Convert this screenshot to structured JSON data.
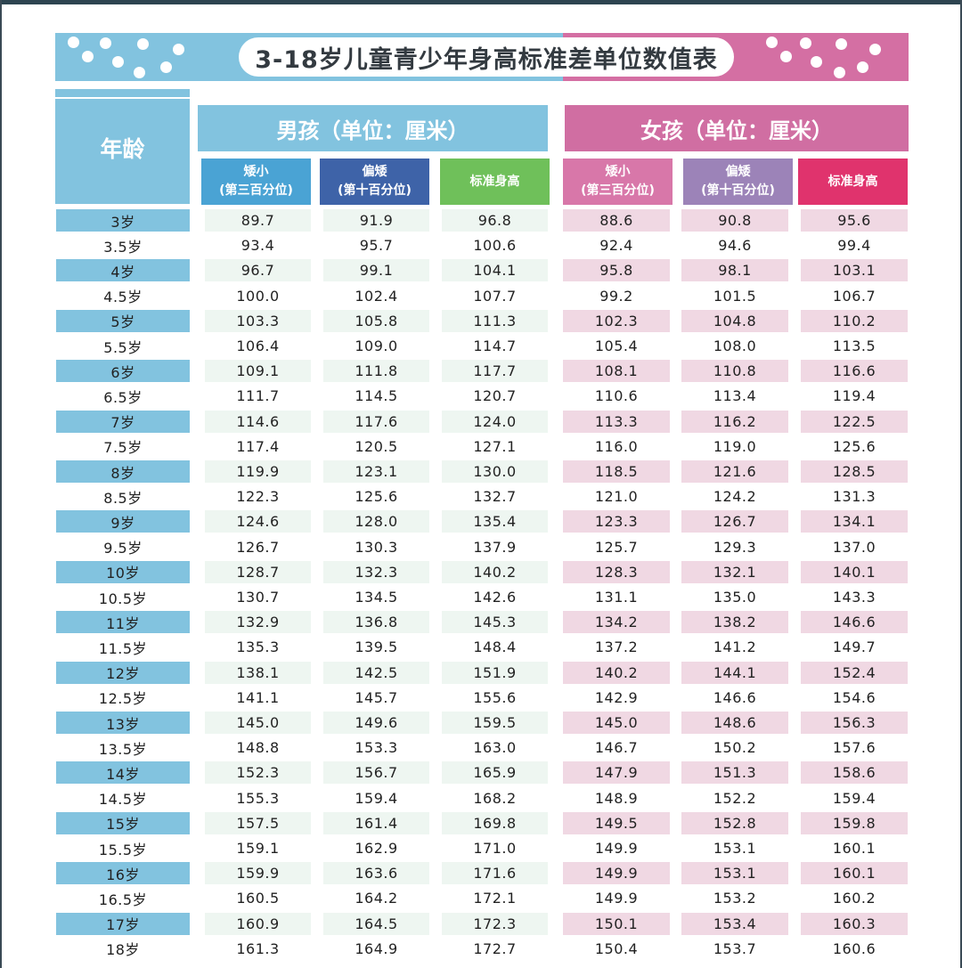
{
  "title": "3-18岁儿童青少年身高标准差单位数值表",
  "headers": {
    "age": "年龄",
    "boys": "男孩（单位：厘米）",
    "girls": "女孩（单位：厘米）",
    "boys_cols": [
      {
        "line1": "矮小",
        "line2": "(第三百分位)",
        "color": "#4aa3d4"
      },
      {
        "line1": "偏矮",
        "line2": "(第十百分位)",
        "color": "#3e63a8"
      },
      {
        "line1": "标准身高",
        "line2": "",
        "color": "#6fc05a"
      }
    ],
    "girls_cols": [
      {
        "line1": "矮小",
        "line2": "(第三百分位)",
        "color": "#d877a9"
      },
      {
        "line1": "偏矮",
        "line2": "(第十百分位)",
        "color": "#9c83b8"
      },
      {
        "line1": "标准身高",
        "line2": "",
        "color": "#e0336d"
      }
    ]
  },
  "colors": {
    "banner_blue": "#82c3df",
    "banner_pink": "#d46fa3",
    "age_stripe": "#82c3df",
    "boy_stripe": "#eef6f1",
    "girl_stripe": "#f0d8e3"
  },
  "rows": [
    {
      "age": "3岁",
      "b": [
        "89.7",
        "91.9",
        "96.8"
      ],
      "g": [
        "88.6",
        "90.8",
        "95.6"
      ]
    },
    {
      "age": "3.5岁",
      "b": [
        "93.4",
        "95.7",
        "100.6"
      ],
      "g": [
        "92.4",
        "94.6",
        "99.4"
      ]
    },
    {
      "age": "4岁",
      "b": [
        "96.7",
        "99.1",
        "104.1"
      ],
      "g": [
        "95.8",
        "98.1",
        "103.1"
      ]
    },
    {
      "age": "4.5岁",
      "b": [
        "100.0",
        "102.4",
        "107.7"
      ],
      "g": [
        "99.2",
        "101.5",
        "106.7"
      ]
    },
    {
      "age": "5岁",
      "b": [
        "103.3",
        "105.8",
        "111.3"
      ],
      "g": [
        "102.3",
        "104.8",
        "110.2"
      ]
    },
    {
      "age": "5.5岁",
      "b": [
        "106.4",
        "109.0",
        "114.7"
      ],
      "g": [
        "105.4",
        "108.0",
        "113.5"
      ]
    },
    {
      "age": "6岁",
      "b": [
        "109.1",
        "111.8",
        "117.7"
      ],
      "g": [
        "108.1",
        "110.8",
        "116.6"
      ]
    },
    {
      "age": "6.5岁",
      "b": [
        "111.7",
        "114.5",
        "120.7"
      ],
      "g": [
        "110.6",
        "113.4",
        "119.4"
      ]
    },
    {
      "age": "7岁",
      "b": [
        "114.6",
        "117.6",
        "124.0"
      ],
      "g": [
        "113.3",
        "116.2",
        "122.5"
      ]
    },
    {
      "age": "7.5岁",
      "b": [
        "117.4",
        "120.5",
        "127.1"
      ],
      "g": [
        "116.0",
        "119.0",
        "125.6"
      ]
    },
    {
      "age": "8岁",
      "b": [
        "119.9",
        "123.1",
        "130.0"
      ],
      "g": [
        "118.5",
        "121.6",
        "128.5"
      ]
    },
    {
      "age": "8.5岁",
      "b": [
        "122.3",
        "125.6",
        "132.7"
      ],
      "g": [
        "121.0",
        "124.2",
        "131.3"
      ]
    },
    {
      "age": "9岁",
      "b": [
        "124.6",
        "128.0",
        "135.4"
      ],
      "g": [
        "123.3",
        "126.7",
        "134.1"
      ]
    },
    {
      "age": "9.5岁",
      "b": [
        "126.7",
        "130.3",
        "137.9"
      ],
      "g": [
        "125.7",
        "129.3",
        "137.0"
      ]
    },
    {
      "age": "10岁",
      "b": [
        "128.7",
        "132.3",
        "140.2"
      ],
      "g": [
        "128.3",
        "132.1",
        "140.1"
      ]
    },
    {
      "age": "10.5岁",
      "b": [
        "130.7",
        "134.5",
        "142.6"
      ],
      "g": [
        "131.1",
        "135.0",
        "143.3"
      ]
    },
    {
      "age": "11岁",
      "b": [
        "132.9",
        "136.8",
        "145.3"
      ],
      "g": [
        "134.2",
        "138.2",
        "146.6"
      ]
    },
    {
      "age": "11.5岁",
      "b": [
        "135.3",
        "139.5",
        "148.4"
      ],
      "g": [
        "137.2",
        "141.2",
        "149.7"
      ]
    },
    {
      "age": "12岁",
      "b": [
        "138.1",
        "142.5",
        "151.9"
      ],
      "g": [
        "140.2",
        "144.1",
        "152.4"
      ]
    },
    {
      "age": "12.5岁",
      "b": [
        "141.1",
        "145.7",
        "155.6"
      ],
      "g": [
        "142.9",
        "146.6",
        "154.6"
      ]
    },
    {
      "age": "13岁",
      "b": [
        "145.0",
        "149.6",
        "159.5"
      ],
      "g": [
        "145.0",
        "148.6",
        "156.3"
      ]
    },
    {
      "age": "13.5岁",
      "b": [
        "148.8",
        "153.3",
        "163.0"
      ],
      "g": [
        "146.7",
        "150.2",
        "157.6"
      ]
    },
    {
      "age": "14岁",
      "b": [
        "152.3",
        "156.7",
        "165.9"
      ],
      "g": [
        "147.9",
        "151.3",
        "158.6"
      ]
    },
    {
      "age": "14.5岁",
      "b": [
        "155.3",
        "159.4",
        "168.2"
      ],
      "g": [
        "148.9",
        "152.2",
        "159.4"
      ]
    },
    {
      "age": "15岁",
      "b": [
        "157.5",
        "161.4",
        "169.8"
      ],
      "g": [
        "149.5",
        "152.8",
        "159.8"
      ]
    },
    {
      "age": "15.5岁",
      "b": [
        "159.1",
        "162.9",
        "171.0"
      ],
      "g": [
        "149.9",
        "153.1",
        "160.1"
      ]
    },
    {
      "age": "16岁",
      "b": [
        "159.9",
        "163.6",
        "171.6"
      ],
      "g": [
        "149.9",
        "153.1",
        "160.1"
      ]
    },
    {
      "age": "16.5岁",
      "b": [
        "160.5",
        "164.2",
        "172.1"
      ],
      "g": [
        "149.9",
        "153.2",
        "160.2"
      ]
    },
    {
      "age": "17岁",
      "b": [
        "160.9",
        "164.5",
        "172.3"
      ],
      "g": [
        "150.1",
        "153.4",
        "160.3"
      ]
    },
    {
      "age": "18岁",
      "b": [
        "161.3",
        "164.9",
        "172.7"
      ],
      "g": [
        "150.4",
        "153.7",
        "160.6"
      ]
    }
  ]
}
